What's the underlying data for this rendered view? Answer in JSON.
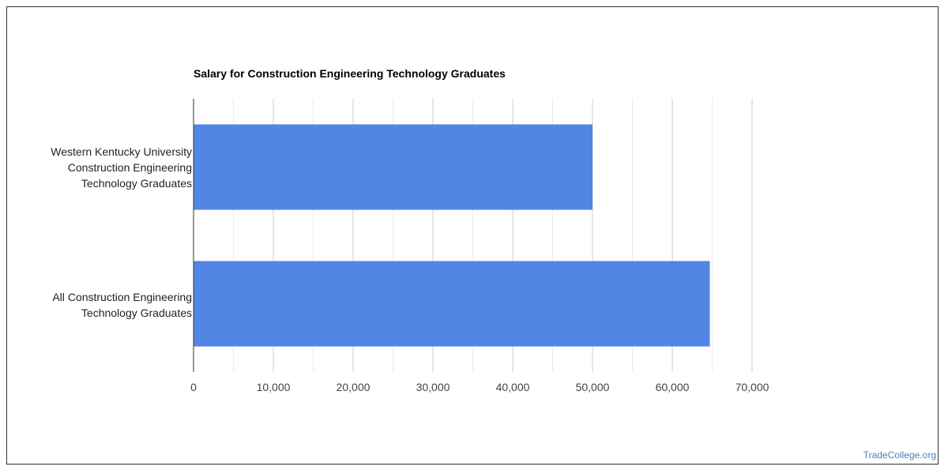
{
  "chart_data": {
    "type": "bar",
    "orientation": "horizontal",
    "title": "Salary for Construction Engineering Technology Graduates",
    "categories": [
      "Western Kentucky University\nConstruction Engineering\nTechnology Graduates",
      "All Construction Engineering\nTechnology Graduates"
    ],
    "values": [
      50000,
      64700
    ],
    "xlim": [
      0,
      70000
    ],
    "xticks": [
      0,
      10000,
      20000,
      30000,
      40000,
      50000,
      60000,
      70000
    ],
    "xtick_labels": [
      "0",
      "10,000",
      "20,000",
      "30,000",
      "40,000",
      "50,000",
      "60,000",
      "70,000"
    ],
    "xlabel": "",
    "ylabel": "",
    "grid": true,
    "bar_color": "#5386e4",
    "grid_color": "#dddddd"
  },
  "watermark": "TradeCollege.org"
}
